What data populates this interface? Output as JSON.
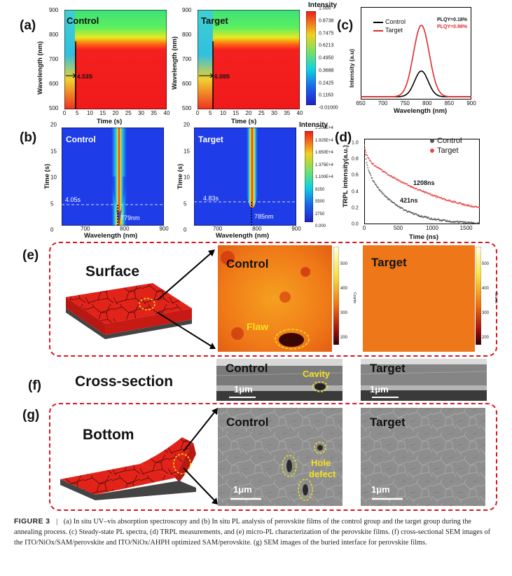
{
  "panel_labels": {
    "a": "(a)",
    "b": "(b)",
    "c": "(c)",
    "d": "(d)",
    "e": "(e)",
    "f": "(f)",
    "g": "(g)"
  },
  "panel_a": {
    "ylabel": "Wavelength (nm)",
    "xlabel": "Time (s)",
    "yticks": [
      "900",
      "800",
      "700",
      "600",
      "500"
    ],
    "xticks": [
      "0",
      "5",
      "10",
      "15",
      "20",
      "25",
      "30",
      "35",
      "40"
    ],
    "control": {
      "title": "Control",
      "mark": "4.53S"
    },
    "target": {
      "title": "Target",
      "mark": "6.09S"
    },
    "colorbar": {
      "title": "Intensity",
      "ticks": [
        "1.000",
        "0.8738",
        "0.7475",
        "0.6213",
        "0.4950",
        "0.3688",
        "0.2425",
        "0.1163",
        "-0.01000"
      ]
    }
  },
  "panel_b": {
    "ylabel": "Time (s)",
    "xlabel": "Wavelength (nm)",
    "yticks": [
      "20",
      "15",
      "10",
      "5",
      "0"
    ],
    "xticks": [
      "700",
      "800",
      "900"
    ],
    "control": {
      "title": "Control",
      "time": "4.05s",
      "peak": "779nm"
    },
    "target": {
      "title": "Target",
      "time": "4.83s",
      "peak": "785nm"
    },
    "colorbar": {
      "title": "Intensity",
      "ticks": [
        "2.200E+4",
        "1.925E+4",
        "1.650E+4",
        "1.375E+4",
        "1.100E+4",
        "8250",
        "5500",
        "2750",
        "0.000"
      ]
    }
  },
  "chart_data": [
    {
      "type": "line",
      "panel": "c",
      "title": "",
      "xlabel": "Wavelength (nm)",
      "ylabel": "Intensity (a.u)",
      "xlim": [
        650,
        900
      ],
      "xticks": [
        "650",
        "700",
        "750",
        "800",
        "850",
        "900"
      ],
      "legend": [
        "Control",
        "Target"
      ],
      "annotations": [
        "PLQY=0.18%",
        "PLQY=0.98%"
      ],
      "series": [
        {
          "name": "Control",
          "color": "#000000",
          "peak_x": 787,
          "peak_rel": 0.36,
          "fwhm": 36
        },
        {
          "name": "Target",
          "color": "#e0282b",
          "peak_x": 787,
          "peak_rel": 1.0,
          "fwhm": 42
        }
      ]
    },
    {
      "type": "scatter",
      "panel": "d",
      "title": "",
      "xlabel": "Time (ns)",
      "ylabel": "TRPL intensity(a.u.)",
      "xlim": [
        0,
        1700
      ],
      "ylim": [
        0,
        1.05
      ],
      "xticks": [
        "0",
        "500",
        "1000",
        "1500"
      ],
      "yticks": [
        "0.0",
        "0.2",
        "0.4",
        "0.6",
        "0.8",
        "1.0"
      ],
      "legend": [
        "Control",
        "Target"
      ],
      "series": [
        {
          "name": "Control",
          "color": "#555555",
          "lifetime_label": "421ns",
          "tau_ns": 421
        },
        {
          "name": "Target",
          "color": "#e84848",
          "lifetime_label": "1208ns",
          "tau_ns": 1208
        }
      ]
    }
  ],
  "panel_e": {
    "heading": "Surface",
    "control": "Control",
    "target": "Target",
    "flaw": "Flaw",
    "colorbar_ticks": [
      "500",
      "400",
      "300",
      "200"
    ],
    "colorbar_unit": "Counts"
  },
  "panel_f": {
    "heading": "Cross-section",
    "control": "Control",
    "target": "Target",
    "cavity": "Cavity",
    "scale": "1μm"
  },
  "panel_g": {
    "heading": "Bottom",
    "control": "Control",
    "target": "Target",
    "defect_line1": "Hole",
    "defect_line2": "defect",
    "scale": "1μm"
  },
  "caption": {
    "label": "FIGURE 3",
    "text": "(a) In situ UV–vis absorption spectroscopy and (b) In situ PL analysis of perovskite films of the control group and the target group during the annealing process. (c) Steady-state PL spectra, (d) TRPL measurements, and (e) micro-PL characterization of the perovskite films. (f) cross-sectional SEM images of the ITO/NiOx/SAM/perovskite and ITO/NiOx/AHPH optimized SAM/perovskite. (g) SEM images of the buried interface for perovskite films."
  }
}
